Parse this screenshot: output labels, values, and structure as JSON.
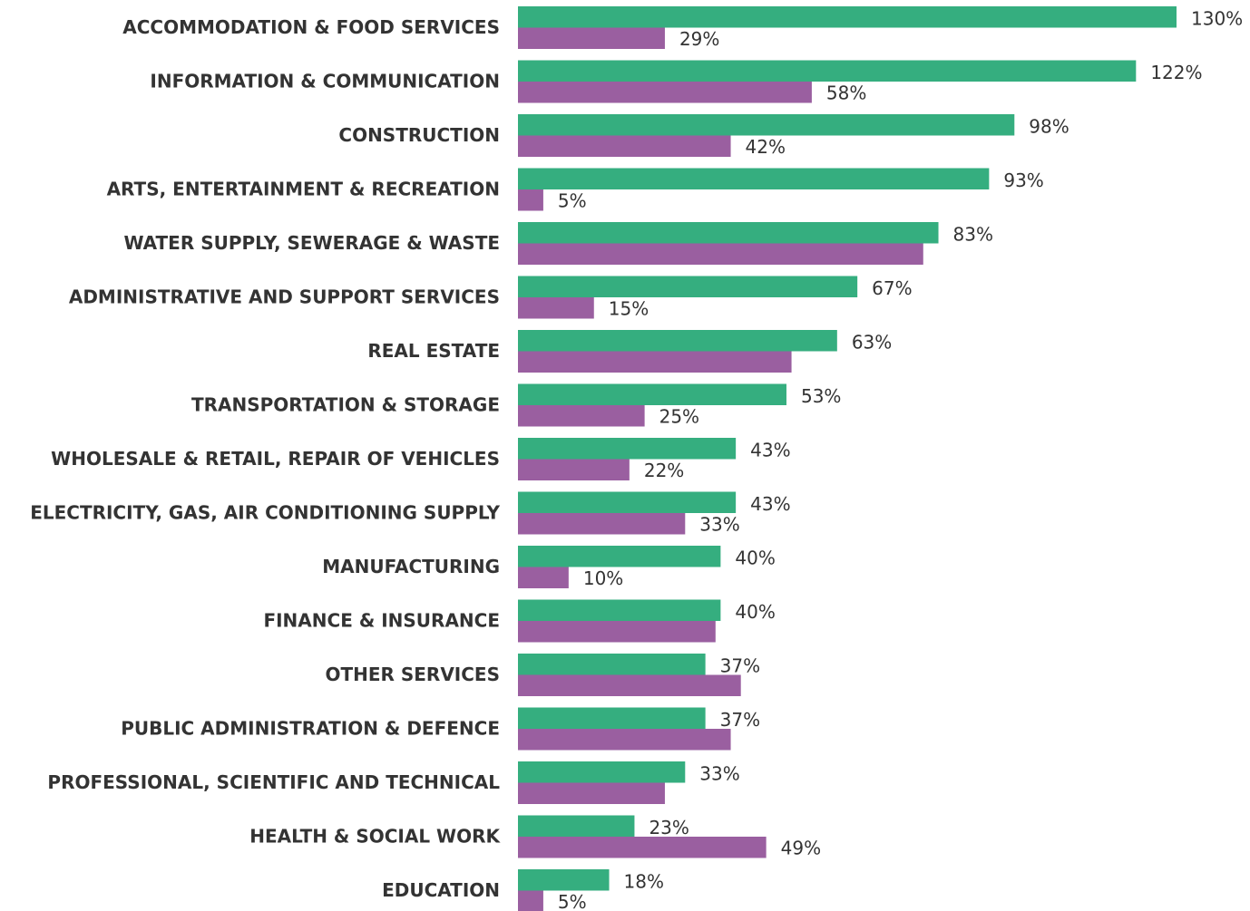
{
  "chart_data": {
    "type": "bar",
    "orientation": "horizontal",
    "categories": [
      "ACCOMMODATION & FOOD SERVICES",
      "INFORMATION & COMMUNICATION",
      "CONSTRUCTION",
      "ARTS, ENTERTAINMENT & RECREATION",
      "WATER SUPPLY, SEWERAGE & WASTE",
      "ADMINISTRATIVE AND SUPPORT SERVICES",
      "REAL ESTATE",
      "TRANSPORTATION & STORAGE",
      "WHOLESALE & RETAIL, REPAIR OF VEHICLES",
      "ELECTRICITY, GAS, AIR CONDITIONING SUPPLY",
      "MANUFACTURING",
      "FINANCE & INSURANCE",
      "OTHER SERVICES",
      "PUBLIC ADMINISTRATION & DEFENCE",
      "PROFESSIONAL, SCIENTIFIC AND TECHNICAL",
      "HEALTH & SOCIAL WORK",
      "EDUCATION"
    ],
    "series": [
      {
        "color": "#35ae7f",
        "values": [
          130,
          122,
          98,
          93,
          83,
          67,
          63,
          53,
          43,
          43,
          40,
          40,
          37,
          37,
          33,
          23,
          18
        ],
        "value_labels": [
          "130%",
          "122%",
          "98%",
          "93%",
          "83%",
          "67%",
          "63%",
          "53%",
          "43%",
          "43%",
          "40%",
          "40%",
          "37%",
          "37%",
          "33%",
          "23%",
          "18%"
        ]
      },
      {
        "color": "#9a5fa0",
        "values": [
          29,
          58,
          42,
          5,
          80,
          15,
          54,
          25,
          22,
          33,
          10,
          39,
          44,
          42,
          29,
          49,
          5
        ],
        "value_labels": [
          "29%",
          "58%",
          "42%",
          "5%",
          null,
          "15%",
          null,
          "25%",
          "22%",
          "33%",
          "10%",
          null,
          null,
          null,
          null,
          "49%",
          "5%"
        ]
      }
    ]
  }
}
